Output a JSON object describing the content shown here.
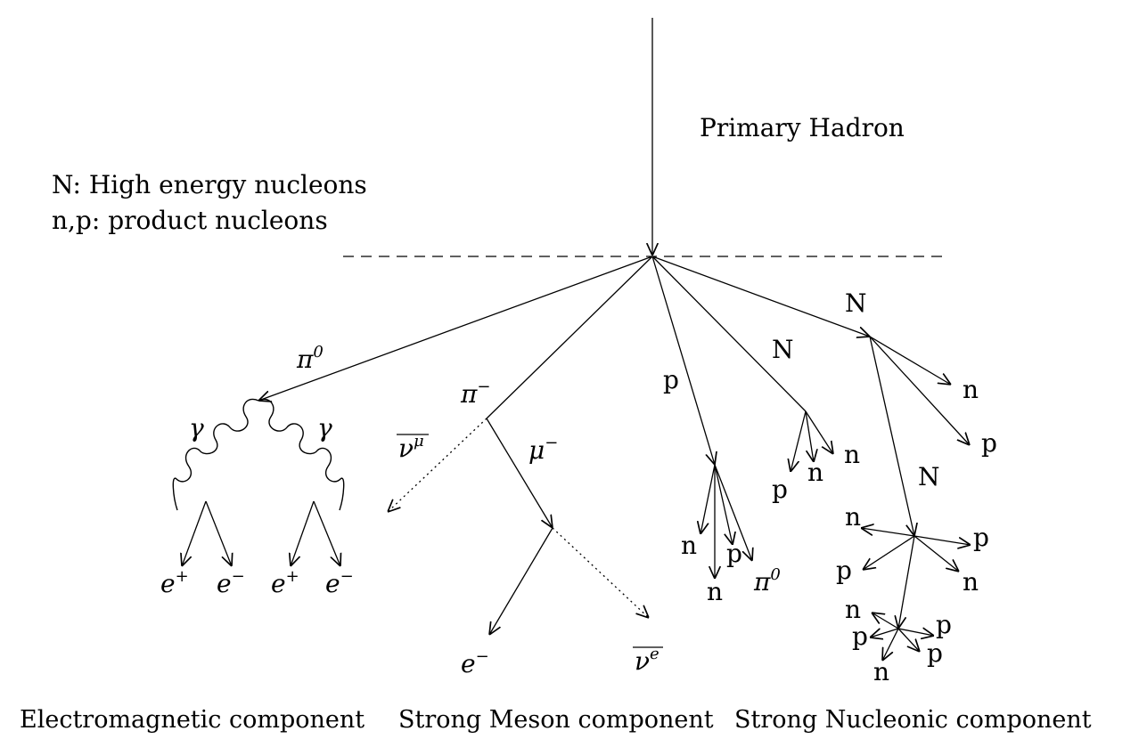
{
  "primary_label": "Primary Hadron",
  "legend": {
    "line1": "N: High energy nucleons",
    "line2": "n,p: product nucleons"
  },
  "em": {
    "pi0": "π",
    "pi0_sup": "0",
    "gamma": "γ",
    "e_plus": "e",
    "plus_sup": "+",
    "e_minus": "e",
    "minus_sup": "−"
  },
  "meson": {
    "pi_minus": "π",
    "pi_minus_sup": "−",
    "mu_minus": "μ",
    "mu_minus_sup": "−",
    "nu_mu": "ν",
    "nu_mu_sup": "μ",
    "e_minus": "e",
    "e_minus_sup": "−",
    "nu_e": "ν",
    "nu_e_sup": "e"
  },
  "nucleonic": {
    "N": "N",
    "n": "n",
    "p": "p",
    "pi0": "π",
    "pi0_sup": "0"
  },
  "captions": {
    "em": "Electromagnetic component",
    "meson": "Strong Meson component",
    "nucleonic": "Strong Nucleonic component"
  }
}
